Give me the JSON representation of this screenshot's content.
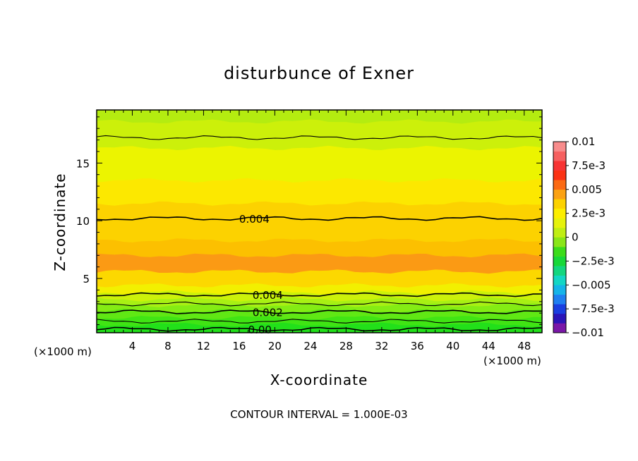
{
  "chart_data": {
    "type": "heatmap",
    "title": "disturbunce of Exner",
    "xlabel": "X-coordinate",
    "ylabel": "Z-coordinate",
    "x_unit_left": "(×1000 m)",
    "x_unit_right": "(×1000 m)",
    "xlim": [
      0,
      50
    ],
    "ylim": [
      0.3,
      19.6
    ],
    "x_ticks": [
      4,
      8,
      12,
      16,
      20,
      24,
      28,
      32,
      36,
      40,
      44,
      48
    ],
    "y_ticks": [
      5,
      10,
      15
    ],
    "footer": "CONTOUR INTERVAL = 1.000E-03",
    "colorbar": {
      "range": [
        -0.01,
        0.01
      ],
      "labels": [
        {
          "value": 0.01,
          "text": "0.01"
        },
        {
          "value": 0.0075,
          "text": "7.5e-3"
        },
        {
          "value": 0.005,
          "text": "0.005"
        },
        {
          "value": 0.0025,
          "text": "2.5e-3"
        },
        {
          "value": 0,
          "text": "0"
        },
        {
          "value": -0.0025,
          "text": "−2.5e-3"
        },
        {
          "value": -0.005,
          "text": "−0.005"
        },
        {
          "value": -0.0075,
          "text": "−7.5e-3"
        },
        {
          "value": -0.01,
          "text": "−0.01"
        }
      ],
      "colors": [
        "#7a17a8",
        "#2b14b8",
        "#1a3ee0",
        "#1f7ff0",
        "#16b4e8",
        "#14d6c4",
        "#14d67e",
        "#18d838",
        "#3cdc1a",
        "#8ae618",
        "#c0ee14",
        "#e6f20c",
        "#fcee00",
        "#fcd200",
        "#fba214",
        "#fb6a14",
        "#fb3214",
        "#f73434",
        "#f66060",
        "#f88c8c"
      ]
    },
    "bands": [
      {
        "z": 0.3,
        "value": 0.0003,
        "color": "#22e01a"
      },
      {
        "z": 1.0,
        "value": 0.0007,
        "color": "#40e414"
      },
      {
        "z": 1.6,
        "value": 0.0013,
        "color": "#60e814"
      },
      {
        "z": 2.2,
        "value": 0.0018,
        "color": "#84ec14"
      },
      {
        "z": 2.7,
        "value": 0.0024,
        "color": "#a8f014"
      },
      {
        "z": 3.2,
        "value": 0.0031,
        "color": "#ccf20a"
      },
      {
        "z": 3.8,
        "value": 0.0037,
        "color": "#f2f000"
      },
      {
        "z": 4.4,
        "value": 0.0044,
        "color": "#fcd800"
      },
      {
        "z": 5.6,
        "value": 0.0053,
        "color": "#fb9a14"
      },
      {
        "z": 7.0,
        "value": 0.0049,
        "color": "#fcc000"
      },
      {
        "z": 8.3,
        "value": 0.0045,
        "color": "#fcd200"
      },
      {
        "z": 11.5,
        "value": 0.0038,
        "color": "#fce800"
      },
      {
        "z": 13.5,
        "value": 0.0033,
        "color": "#ecf400"
      },
      {
        "z": 16.3,
        "value": 0.0029,
        "color": "#ccf00a"
      },
      {
        "z": 18.6,
        "value": 0.0024,
        "color": "#b4ec10"
      }
    ],
    "contours": [
      {
        "level": "0.004",
        "label": "0.004",
        "z": 10.2,
        "label_x": 16
      },
      {
        "level": "0.004",
        "label": "0.004",
        "z": 3.6,
        "label_x": 17.5
      },
      {
        "level": "0.002",
        "label": "0.002",
        "z": 2.1,
        "label_x": 17.5
      },
      {
        "level": "0.00",
        "label": "0.00",
        "z": 0.6,
        "label_x": 17
      },
      {
        "level": "0.003",
        "label": "",
        "z": 17.2,
        "label_x": null
      },
      {
        "level": "0.001",
        "label": "",
        "z": 1.3,
        "label_x": null
      },
      {
        "level": "0.003",
        "label": "",
        "z": 2.8,
        "label_x": null
      }
    ]
  }
}
